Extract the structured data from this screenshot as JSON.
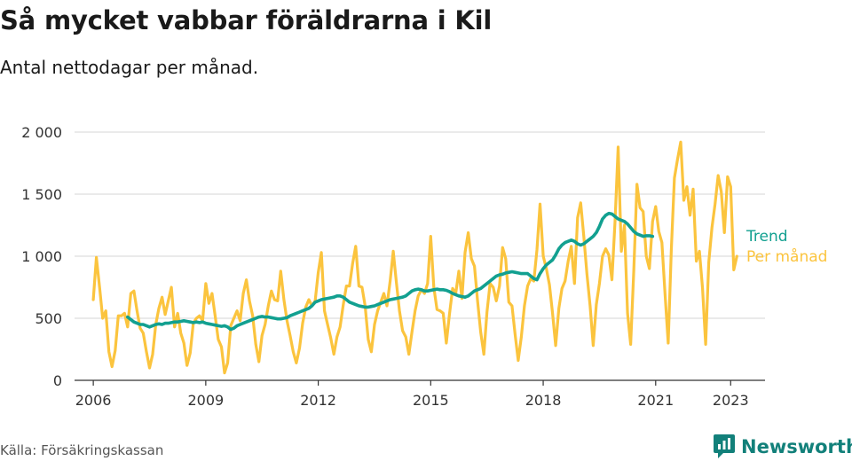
{
  "title": "Så mycket vabbar föräldrarna i Kil",
  "subtitle": "Antal nettodagar per månad.",
  "source": "Källa: Försäkringskassan",
  "brand": {
    "name": "Newsworthy",
    "color": "#12807a"
  },
  "colors": {
    "grid": "#d4d4d4",
    "axis": "#333333"
  },
  "chart_data": {
    "type": "line",
    "x_axis": {
      "type": "date",
      "range": [
        "2005-07",
        "2023-12"
      ],
      "ticks": [
        "2006",
        "2009",
        "2012",
        "2015",
        "2018",
        "2021",
        "2023"
      ]
    },
    "y_axis": {
      "range": [
        0,
        2000
      ],
      "ticks": [
        0,
        500,
        1000,
        1500,
        2000
      ],
      "tick_labels": [
        "0",
        "500",
        "1 000",
        "1 500",
        "2 000"
      ]
    },
    "grid": "horizontal",
    "legend": "end-of-line labels",
    "series": [
      {
        "name": "Per månad",
        "color": "#fbc43e",
        "start": "2006-01",
        "values": [
          650,
          990,
          750,
          500,
          560,
          230,
          110,
          240,
          520,
          520,
          540,
          430,
          700,
          720,
          560,
          420,
          380,
          230,
          100,
          210,
          450,
          580,
          670,
          530,
          640,
          750,
          430,
          540,
          380,
          300,
          120,
          220,
          460,
          500,
          520,
          480,
          780,
          620,
          700,
          520,
          330,
          270,
          60,
          140,
          440,
          500,
          560,
          480,
          700,
          810,
          640,
          520,
          290,
          150,
          360,
          450,
          600,
          720,
          650,
          640,
          880,
          650,
          480,
          360,
          230,
          140,
          260,
          460,
          590,
          650,
          600,
          640,
          870,
          1030,
          560,
          450,
          340,
          210,
          350,
          430,
          610,
          760,
          760,
          940,
          1080,
          760,
          750,
          600,
          330,
          230,
          450,
          560,
          630,
          700,
          600,
          800,
          1040,
          790,
          560,
          400,
          350,
          210,
          390,
          560,
          680,
          730,
          700,
          780,
          1160,
          750,
          570,
          560,
          540,
          300,
          530,
          740,
          700,
          880,
          660,
          1030,
          1190,
          980,
          920,
          640,
          390,
          210,
          550,
          780,
          750,
          640,
          760,
          1070,
          980,
          630,
          600,
          370,
          160,
          350,
          600,
          760,
          820,
          800,
          1050,
          1420,
          1000,
          900,
          770,
          540,
          280,
          580,
          740,
          800,
          960,
          1080,
          780,
          1310,
          1430,
          1160,
          860,
          600,
          280,
          610,
          780,
          1000,
          1060,
          1010,
          810,
          1280,
          1880,
          1040,
          1250,
          540,
          290,
          880,
          1580,
          1390,
          1360,
          1000,
          900,
          1280,
          1400,
          1200,
          1110,
          700,
          300,
          1050,
          1630,
          1780,
          1920,
          1450,
          1560,
          1330,
          1540,
          960,
          1040,
          740,
          290,
          950,
          1230,
          1420,
          1650,
          1520,
          1190,
          1640,
          1560,
          890,
          1000
        ]
      },
      {
        "name": "Trend",
        "color": "#12a090",
        "start": "2006-12",
        "values": [
          510,
          490,
          470,
          460,
          450,
          450,
          440,
          430,
          440,
          450,
          455,
          450,
          460,
          460,
          465,
          470,
          470,
          475,
          480,
          475,
          470,
          465,
          470,
          465,
          470,
          460,
          455,
          450,
          445,
          440,
          435,
          440,
          430,
          410,
          420,
          440,
          450,
          460,
          470,
          480,
          490,
          500,
          510,
          515,
          510,
          510,
          505,
          500,
          495,
          495,
          500,
          505,
          520,
          530,
          540,
          550,
          560,
          570,
          580,
          600,
          630,
          640,
          650,
          655,
          660,
          665,
          670,
          680,
          680,
          670,
          650,
          630,
          620,
          610,
          600,
          595,
          590,
          590,
          595,
          600,
          610,
          620,
          630,
          640,
          650,
          655,
          660,
          665,
          670,
          680,
          700,
          720,
          730,
          735,
          730,
          720,
          720,
          725,
          730,
          735,
          730,
          730,
          725,
          715,
          700,
          690,
          680,
          675,
          670,
          680,
          700,
          720,
          730,
          740,
          760,
          780,
          800,
          820,
          840,
          850,
          855,
          865,
          870,
          875,
          870,
          865,
          860,
          860,
          860,
          840,
          820,
          810,
          860,
          900,
          930,
          950,
          970,
          1010,
          1060,
          1090,
          1110,
          1120,
          1130,
          1120,
          1100,
          1090,
          1100,
          1120,
          1140,
          1160,
          1190,
          1240,
          1300,
          1330,
          1345,
          1340,
          1320,
          1300,
          1290,
          1280,
          1260,
          1230,
          1200,
          1180,
          1170,
          1160,
          1165,
          1165,
          1160
        ]
      }
    ]
  }
}
